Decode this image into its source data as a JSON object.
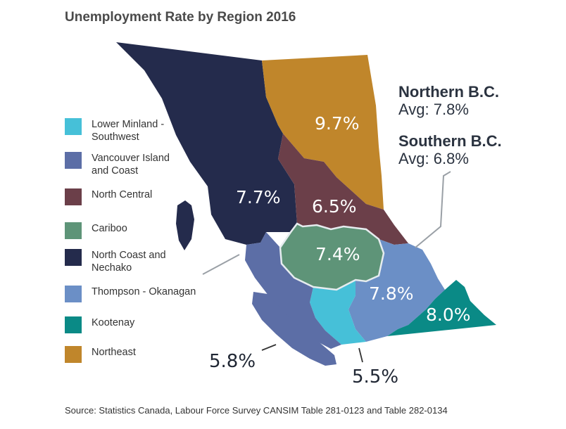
{
  "title": "Unemployment Rate by Region 2016",
  "legend": [
    {
      "label": "Lower Minland -\nSouthwest",
      "color": "#46c0d8"
    },
    {
      "label": "Vancouver Island\nand Coast",
      "color": "#5c6ea6"
    },
    {
      "label": "North Central",
      "color": "#6b3f49"
    },
    {
      "label": "Cariboo",
      "color": "#5e9478"
    },
    {
      "label": "North Coast and\nNechako",
      "color": "#242b4c"
    },
    {
      "label": "Thompson - Okanagan",
      "color": "#6b8fc6"
    },
    {
      "label": "Kootenay",
      "color": "#0a8a86"
    },
    {
      "label": "Northeast",
      "color": "#c0862b"
    }
  ],
  "regions": {
    "northeast": {
      "rate": "9.7%"
    },
    "north_coast_nechako": {
      "rate": "7.7%"
    },
    "north_central": {
      "rate": "6.5%"
    },
    "cariboo": {
      "rate": "7.4%"
    },
    "thompson_okanagan": {
      "rate": "7.8%"
    },
    "kootenay": {
      "rate": "8.0%"
    },
    "vancouver_island": {
      "rate": "5.8%"
    },
    "lower_mainland": {
      "rate": "5.5%"
    }
  },
  "summary": {
    "north_label": "Northern B.C.",
    "north_avg": "Avg: 7.8%",
    "south_label": "Southern B.C.",
    "south_avg": "Avg: 6.8%"
  },
  "source": "Source: Statistics Canada, Labour Force Survey CANSIM Table 281-0123 and Table 282-0134"
}
